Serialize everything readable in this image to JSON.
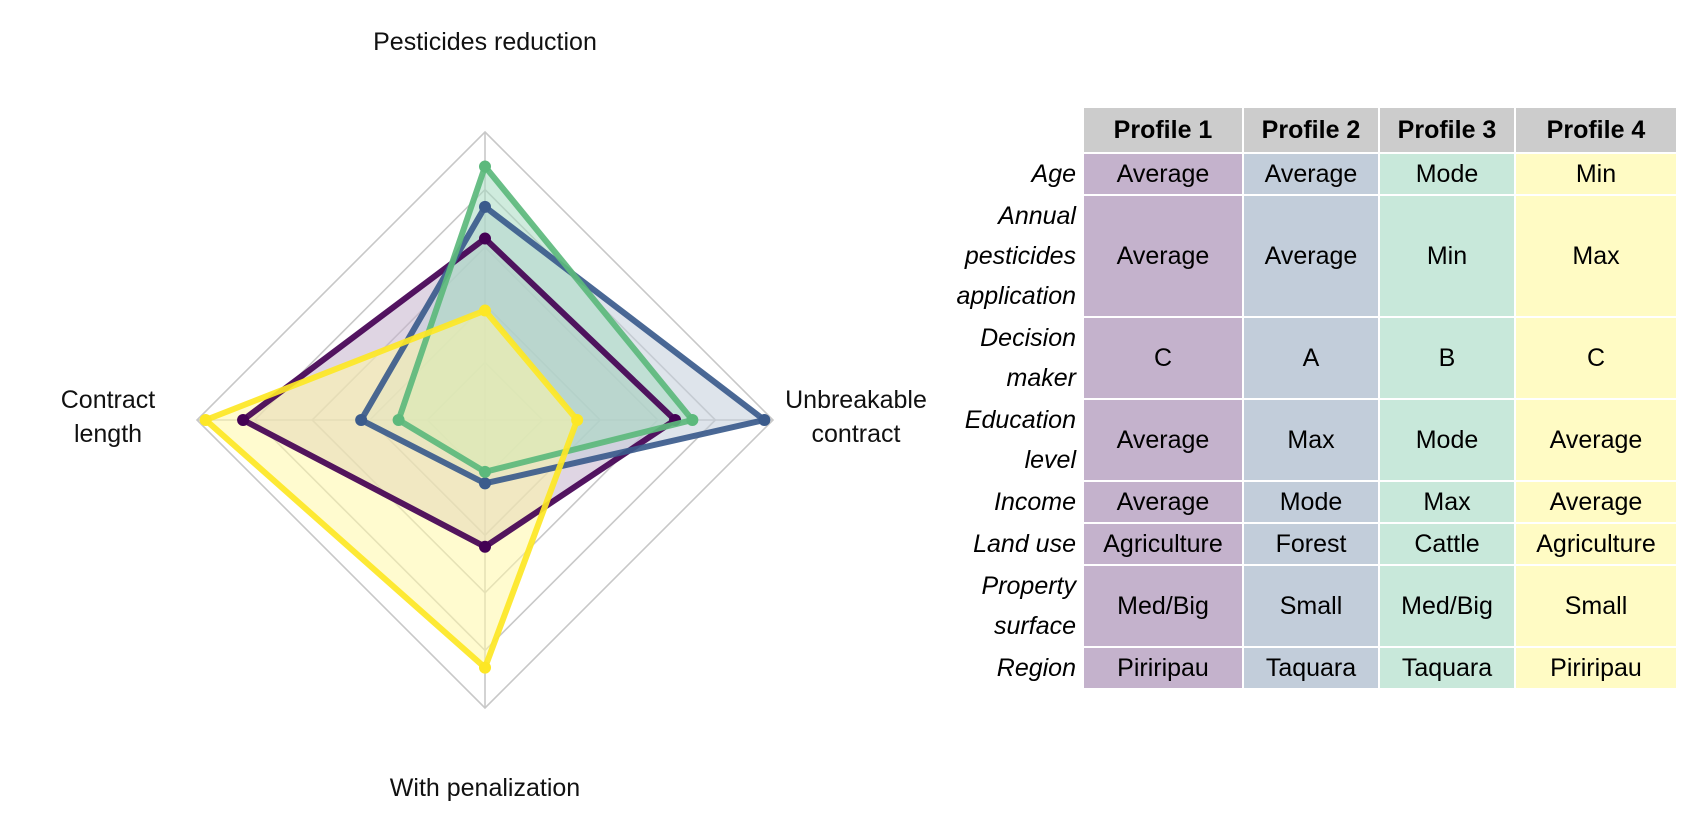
{
  "chart_data": [
    {
      "type": "radar",
      "axes": [
        "Pesticides reduction",
        "Unbreakable contract",
        "With penalization",
        "Contract length"
      ],
      "axis_label_lines": [
        [
          "Pesticides reduction"
        ],
        [
          "Unbreakable",
          "contract"
        ],
        [
          "With penalization"
        ],
        [
          "Contract",
          "length"
        ]
      ],
      "range": [
        0,
        1
      ],
      "rings": [
        0.2,
        0.4,
        0.6,
        0.8,
        1.0
      ],
      "grid": true,
      "legend": "none",
      "series": [
        {
          "values": [
            0.63,
            0.66,
            0.44,
            0.84
          ],
          "color": "#440154",
          "fill": "#c4b2cc"
        },
        {
          "values": [
            0.74,
            0.97,
            0.22,
            0.43
          ],
          "color": "#3b5b8c",
          "fill": "#c2cdda"
        },
        {
          "values": [
            0.88,
            0.72,
            0.18,
            0.3
          ],
          "color": "#5cb97c",
          "fill": "#a8dbc1"
        },
        {
          "values": [
            0.38,
            0.32,
            0.86,
            0.97
          ],
          "color": "#fde725",
          "fill": "#fff7a8"
        }
      ]
    },
    {
      "type": "table",
      "columns": [
        "Profile 1",
        "Profile 2",
        "Profile 3",
        "Profile 4"
      ],
      "column_colors": [
        "#c4b2cc",
        "#c2cdda",
        "#c8e8da",
        "#fffbc4"
      ],
      "rows": [
        {
          "label_lines": [
            "Age"
          ],
          "values": [
            "Average",
            "Average",
            "Mode",
            "Min"
          ]
        },
        {
          "label_lines": [
            "Annual",
            "pesticides",
            "application"
          ],
          "values": [
            "Average",
            "Average",
            "Min",
            "Max"
          ]
        },
        {
          "label_lines": [
            "Decision",
            "maker"
          ],
          "values": [
            "C",
            "A",
            "B",
            "C"
          ]
        },
        {
          "label_lines": [
            "Education",
            "level"
          ],
          "values": [
            "Average",
            "Max",
            "Mode",
            "Average"
          ]
        },
        {
          "label_lines": [
            "Income"
          ],
          "values": [
            "Average",
            "Mode",
            "Max",
            "Average"
          ]
        },
        {
          "label_lines": [
            "Land use"
          ],
          "values": [
            "Agriculture",
            "Forest",
            "Cattle",
            "Agriculture"
          ]
        },
        {
          "label_lines": [
            "Property",
            "surface"
          ],
          "values": [
            "Med/Big",
            "Small",
            "Med/Big",
            "Small"
          ]
        },
        {
          "label_lines": [
            "Region"
          ],
          "values": [
            "Piriripau",
            "Taquara",
            "Taquara",
            "Piriripau"
          ]
        }
      ]
    }
  ]
}
